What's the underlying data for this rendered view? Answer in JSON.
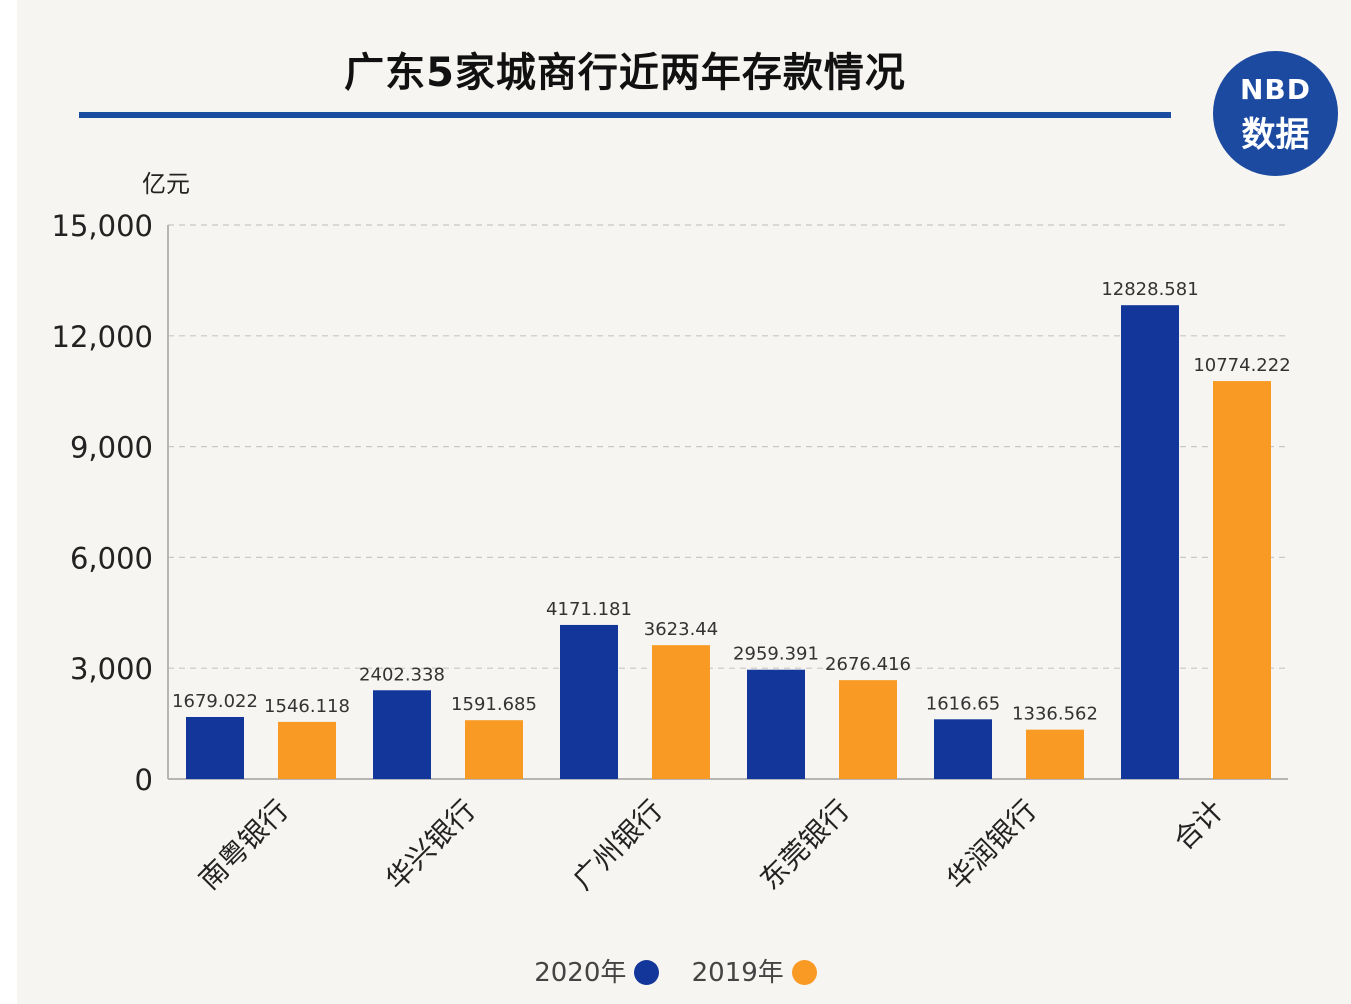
{
  "title": "广东5家城商行近两年存款情况",
  "logo": {
    "line1": "NBD",
    "line2": "数据"
  },
  "colors": {
    "series_2020": "#12369a",
    "series_2019": "#f89a24",
    "title_rule": "#1a4da0"
  },
  "legend": [
    {
      "label": "2020年",
      "color": "#12369a"
    },
    {
      "label": "2019年",
      "color": "#f89a24"
    }
  ],
  "chart_data": {
    "type": "bar",
    "title": "广东5家城商行近两年存款情况",
    "ylabel": "亿元",
    "xlabel": "",
    "ylim": [
      0,
      15000
    ],
    "yticks": [
      0,
      3000,
      6000,
      9000,
      12000,
      15000
    ],
    "ytick_labels": [
      "0",
      "3,000",
      "6,000",
      "9,000",
      "12,000",
      "15,000"
    ],
    "grid": true,
    "legend_position": "bottom",
    "categories": [
      "南粤银行",
      "华兴银行",
      "广州银行",
      "东莞银行",
      "华润银行",
      "合计"
    ],
    "series": [
      {
        "name": "2020年",
        "values": [
          1679.022,
          2402.338,
          4171.181,
          2959.391,
          1616.65,
          12828.581
        ],
        "labels": [
          "1679.022",
          "2402.338",
          "4171.181",
          "2959.391",
          "1616.65",
          "12828.581"
        ]
      },
      {
        "name": "2019年",
        "values": [
          1546.118,
          1591.685,
          3623.44,
          2676.416,
          1336.562,
          10774.222
        ],
        "labels": [
          "1546.118",
          "1591.685",
          "3623.44",
          "2676.416",
          "1336.562",
          "10774.222"
        ]
      }
    ]
  }
}
